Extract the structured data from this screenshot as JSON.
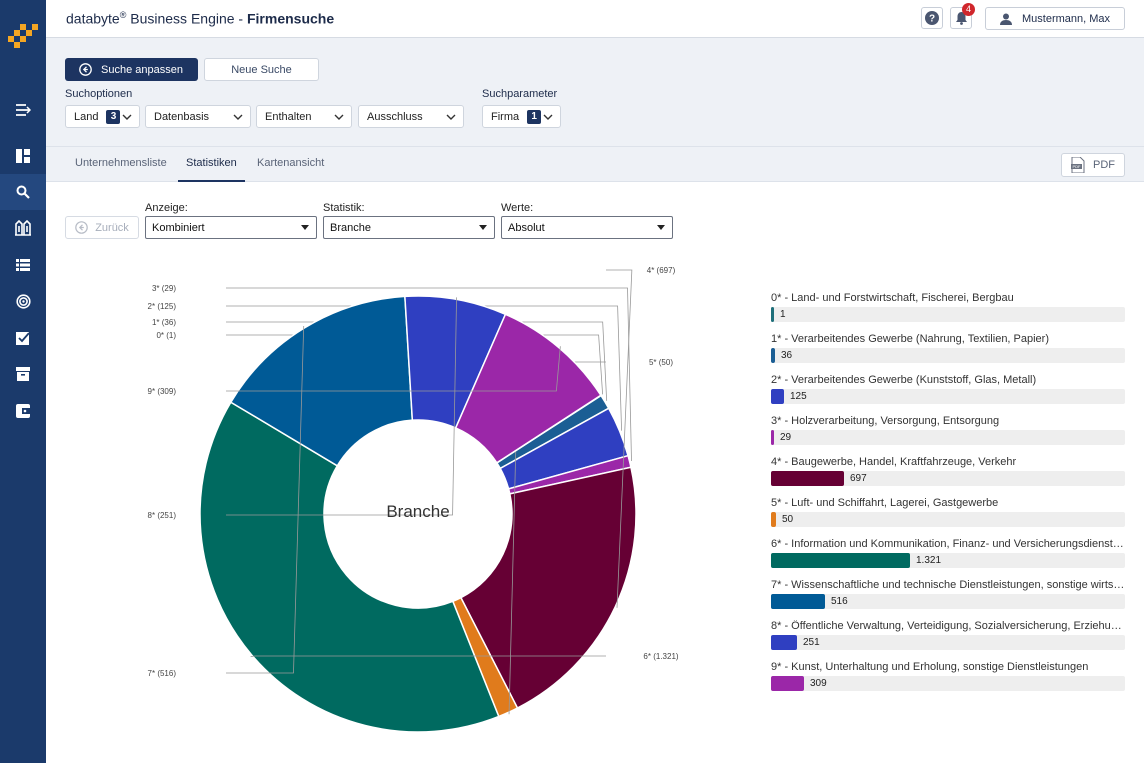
{
  "app": {
    "brand": "databyte",
    "brand_mark": "®",
    "product": " Business Engine - ",
    "page": "Firmensuche",
    "notifications": "4",
    "user": "Mustermann, Max"
  },
  "search": {
    "adjust_label": "Suche anpassen",
    "new_label": "Neue Suche",
    "options_label": "Suchoptionen",
    "params_label": "Suchparameter",
    "options": [
      {
        "label": "Land",
        "count": "3"
      },
      {
        "label": "Datenbasis"
      },
      {
        "label": "Enthalten"
      },
      {
        "label": "Ausschluss"
      }
    ],
    "params": [
      {
        "label": "Firma",
        "count": "1"
      }
    ]
  },
  "tabs": [
    {
      "label": "Unternehmensliste"
    },
    {
      "label": "Statistiken",
      "active": true
    },
    {
      "label": "Kartenansicht"
    }
  ],
  "pdf_label": "PDF",
  "controls": {
    "back_label": "Zurück",
    "anzeige_label": "Anzeige:",
    "anzeige_value": "Kombiniert",
    "statistik_label": "Statistik:",
    "statistik_value": "Branche",
    "werte_label": "Werte:",
    "werte_value": "Absolut"
  },
  "chart_data": {
    "type": "pie",
    "center_label": "Branche",
    "slices": [
      {
        "key": "0*",
        "name": "0* - Land- und Forstwirtschaft, Fischerei, Bergbau",
        "value": 1,
        "display": "1",
        "color": "#1e6f7a"
      },
      {
        "key": "1*",
        "name": "1* - Verarbeitendes Gewerbe (Nahrung, Textilien, Papier)",
        "value": 36,
        "display": "36",
        "color": "#1b5e94"
      },
      {
        "key": "2*",
        "name": "2* - Verarbeitendes Gewerbe (Kunststoff, Glas, Metall)",
        "value": 125,
        "display": "125",
        "color": "#2f3fc1"
      },
      {
        "key": "3*",
        "name": "3* - Holzverarbeitung, Versorgung, Entsorgung",
        "value": 29,
        "display": "29",
        "color": "#9b27a8"
      },
      {
        "key": "4*",
        "name": "4* - Baugewerbe, Handel, Kraftfahrzeuge, Verkehr",
        "value": 697,
        "display": "697",
        "color": "#660034"
      },
      {
        "key": "5*",
        "name": "5* - Luft- und Schiffahrt, Lagerei, Gastgewerbe",
        "value": 50,
        "display": "50",
        "color": "#e07b1c"
      },
      {
        "key": "6*",
        "name": "6* - Information und Kommunikation, Finanz- und Versicherungsdienstlei…",
        "value": 1321,
        "display": "1.321",
        "color": "#006a60"
      },
      {
        "key": "7*",
        "name": "7* - Wissenschaftliche und technische Dienstleistungen, sonstige wirtsc…",
        "value": 516,
        "display": "516",
        "color": "#005a96"
      },
      {
        "key": "8*",
        "name": "8* - Öffentliche Verwaltung, Verteidigung, Sozialversicherung, Erziehung…",
        "value": 251,
        "display": "251",
        "color": "#2f3fc1"
      },
      {
        "key": "9*",
        "name": "9* - Kunst, Unterhaltung und Erholung, sonstige Dienstleistungen",
        "value": 309,
        "display": "309",
        "color": "#9b27a8"
      }
    ],
    "callouts": [
      "0* (1)",
      "1* (36)",
      "2* (125)",
      "3* (29)",
      "4* (697)",
      "5* (50)",
      "6* (1.321)",
      "7* (516)",
      "8* (251)",
      "9* (309)"
    ]
  }
}
